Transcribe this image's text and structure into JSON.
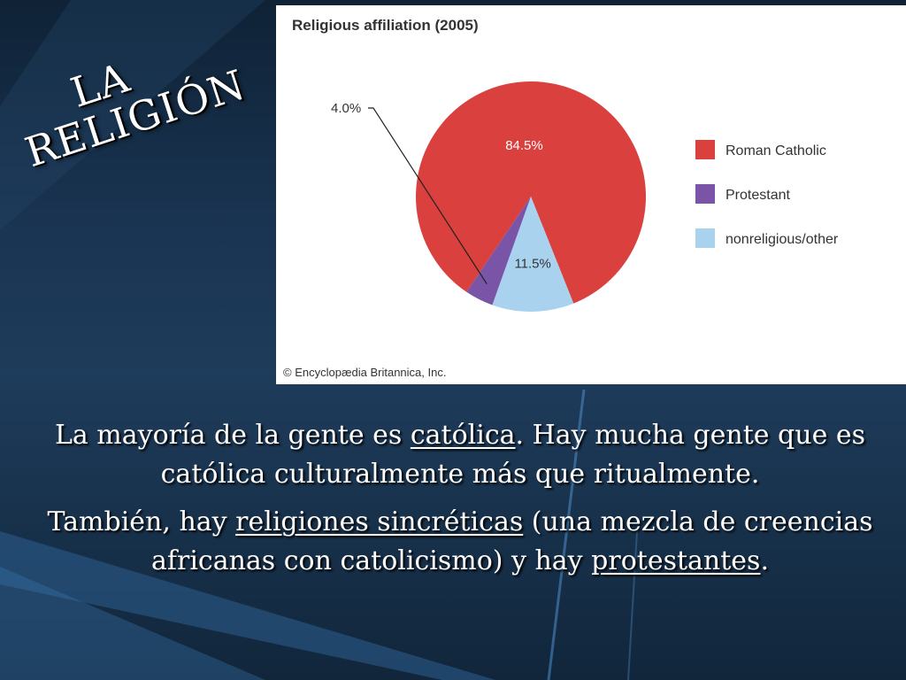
{
  "slide": {
    "title_line1": "LA",
    "title_line2": "RELIGIÓN",
    "paragraph1": {
      "before": "La mayoría de la gente es ",
      "link": "católica",
      "after": ". Hay mucha gente que es católica culturalmente más que ritualmente."
    },
    "paragraph2": {
      "before": "También, hay ",
      "link1": "religiones sincréticas",
      "middle": " (una mezcla de creencias africanas con catolicismo) y hay ",
      "link2": "protestantes",
      "after": "."
    }
  },
  "chart_data": {
    "type": "pie",
    "title": "Religious affiliation (2005)",
    "credit": "© Encyclopædia Britannica, Inc.",
    "slices": [
      {
        "label": "Roman Catholic",
        "value": 84.5,
        "value_label": "84.5%",
        "color": "#d9403e"
      },
      {
        "label": "Protestant",
        "value": 4.0,
        "value_label": "4.0%",
        "color": "#7a55a7"
      },
      {
        "label": "nonreligious/other",
        "value": 11.5,
        "value_label": "11.5%",
        "color": "#a9d2ef"
      }
    ],
    "legend_position": "right"
  }
}
